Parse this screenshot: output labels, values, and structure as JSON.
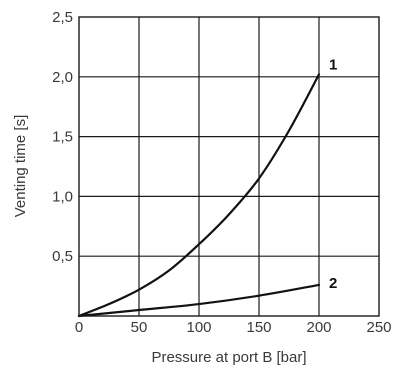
{
  "chart_data": {
    "type": "line",
    "title": "",
    "xlabel": "Pressure at port B [bar]",
    "ylabel": "Venting time [s]",
    "xlim": [
      0,
      250
    ],
    "ylim": [
      0,
      2.5
    ],
    "x_ticks": [
      0,
      50,
      100,
      150,
      200,
      250
    ],
    "y_ticks": [
      0.5,
      1.0,
      1.5,
      2.0,
      2.5
    ],
    "x_tick_labels": [
      "0",
      "50",
      "100",
      "150",
      "200",
      "250"
    ],
    "y_tick_labels": [
      "0,5",
      "1,0",
      "1,5",
      "2,0",
      "2,5"
    ],
    "grid": true,
    "legend": "none",
    "series": [
      {
        "name": "1",
        "x": [
          0,
          25,
          50,
          75,
          100,
          125,
          150,
          175,
          200
        ],
        "y": [
          0,
          0.1,
          0.22,
          0.38,
          0.6,
          0.85,
          1.15,
          1.55,
          2.02
        ]
      },
      {
        "name": "2",
        "x": [
          0,
          50,
          100,
          150,
          200
        ],
        "y": [
          0,
          0.05,
          0.1,
          0.17,
          0.26
        ]
      }
    ]
  }
}
